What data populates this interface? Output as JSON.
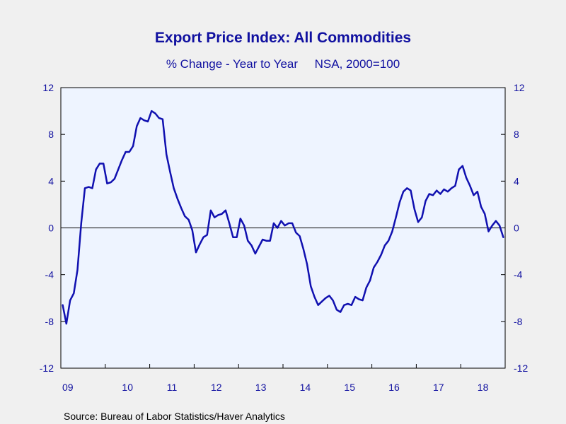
{
  "colors": {
    "background": "#f0f0f0",
    "plot_background": "#eef4ff",
    "series_line": "#1010b0",
    "text": "#1010a0",
    "frame": "#000000"
  },
  "chart_data": {
    "type": "line",
    "title": "Export Price Index: All Commodities",
    "subtitle": "% Change - Year to Year     NSA, 2000=100",
    "source": "Source:  Bureau of Labor Statistics/Haver Analytics",
    "ylim": [
      -12,
      12
    ],
    "yticks": [
      "12",
      "8",
      "4",
      "0",
      "-4",
      "-8",
      "-12"
    ],
    "ytick_values": [
      12,
      8,
      4,
      0,
      -4,
      -8,
      -12
    ],
    "xticks": [
      "09",
      "10",
      "11",
      "12",
      "13",
      "14",
      "15",
      "16",
      "17",
      "18"
    ],
    "xlim": [
      "2009-01",
      "2018-12"
    ],
    "zero_line": true,
    "grid": false,
    "series": [
      {
        "values": [
          -6.6,
          -8.2,
          -6.2,
          -5.6,
          -3.6,
          0.4,
          3.4,
          3.5,
          3.4,
          5.0,
          5.5,
          5.5,
          3.8,
          3.9,
          4.2,
          5.0,
          5.8,
          6.5,
          6.5,
          7.0,
          8.7,
          9.4,
          9.2,
          9.1,
          10.0,
          9.8,
          9.4,
          9.3,
          6.3,
          4.8,
          3.4,
          2.5,
          1.7,
          1.0,
          0.7,
          -0.2,
          -2.1,
          -1.4,
          -0.8,
          -0.6,
          1.5,
          0.9,
          1.1,
          1.2,
          1.5,
          0.4,
          -0.8,
          -0.8,
          0.8,
          0.2,
          -1.1,
          -1.5,
          -2.2,
          -1.6,
          -1.0,
          -1.1,
          -1.1,
          0.4,
          0.0,
          0.6,
          0.2,
          0.4,
          0.4,
          -0.4,
          -0.7,
          -1.8,
          -3.1,
          -5.0,
          -5.9,
          -6.6,
          -6.3,
          -6.0,
          -5.8,
          -6.2,
          -7.0,
          -7.2,
          -6.6,
          -6.5,
          -6.6,
          -5.9,
          -6.1,
          -6.2,
          -5.1,
          -4.5,
          -3.4,
          -2.9,
          -2.3,
          -1.5,
          -1.1,
          -0.3,
          0.9,
          2.2,
          3.1,
          3.4,
          3.2,
          1.6,
          0.5,
          0.9,
          2.3,
          2.9,
          2.8,
          3.2,
          2.9,
          3.3,
          3.1,
          3.4,
          3.6,
          5.0,
          5.3,
          4.3,
          3.6,
          2.8,
          3.1,
          1.8,
          1.2,
          -0.3,
          0.2,
          0.6,
          0.2,
          -0.8
        ]
      }
    ]
  }
}
